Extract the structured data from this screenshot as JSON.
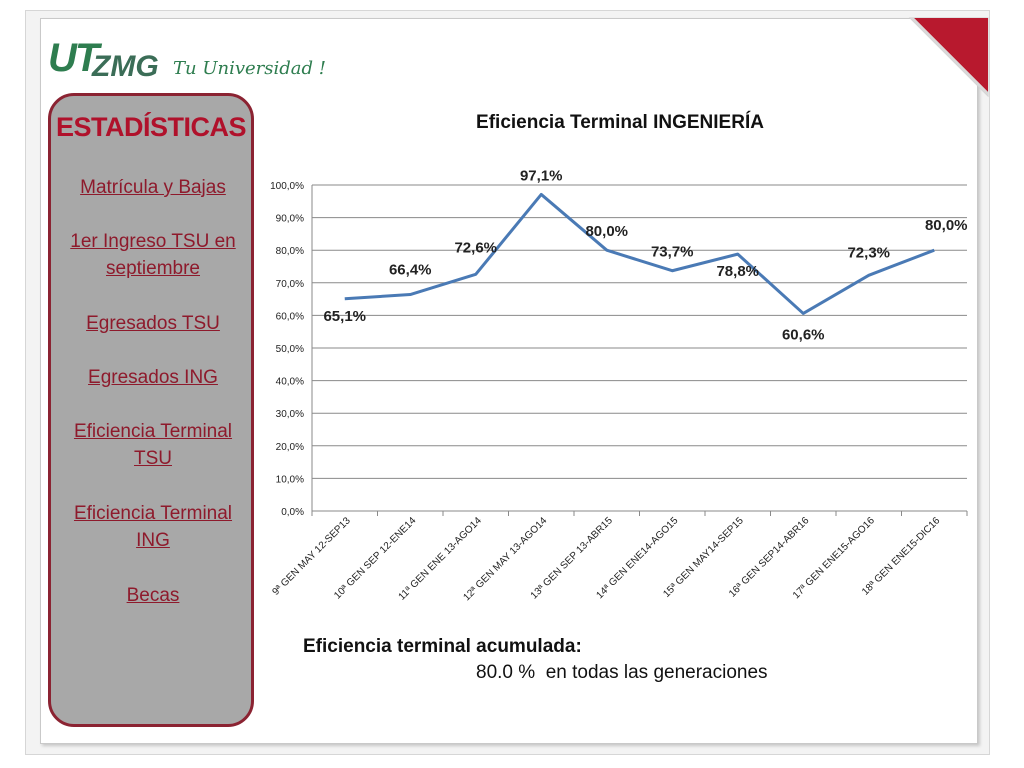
{
  "brand": {
    "name_part1": "UT",
    "name_part2": "ZMG",
    "tagline": "Tu Universidad !",
    "color": "#2e7d4f"
  },
  "sidebar": {
    "title": "ESTADÍSTICAS",
    "items": [
      {
        "label": "Matrícula y Bajas"
      },
      {
        "label": "1er Ingreso TSU en septiembre"
      },
      {
        "label": "Egresados TSU"
      },
      {
        "label": "Egresados ING"
      },
      {
        "label": "Eficiencia Terminal TSU"
      },
      {
        "label": "Eficiencia Terminal ING"
      },
      {
        "label": "Becas"
      }
    ]
  },
  "summary": {
    "label": "Eficiencia terminal acumulada:",
    "value": "80.0 %  en todas las generaciones"
  },
  "chart_data": {
    "type": "line",
    "title": "Eficiencia Terminal INGENIERÍA",
    "xlabel": "",
    "ylabel": "",
    "ylim": [
      0,
      100
    ],
    "yticks": [
      "0,0%",
      "10,0%",
      "20,0%",
      "30,0%",
      "40,0%",
      "50,0%",
      "60,0%",
      "70,0%",
      "80,0%",
      "90,0%",
      "100,0%"
    ],
    "grid": true,
    "legend": "none",
    "line_color": "#4a7ab5",
    "categories": [
      "9ª GEN MAY 12-SEP13",
      "10ª GEN SEP 12-ENE14",
      "11ª GEN ENE 13-AGO14",
      "12ª GEN MAY 13-AGO14",
      "13ª GEN SEP 13-ABR15",
      "14ª GEN ENE14-AGO15",
      "15ª GEN MAY14-SEP15",
      "16ª GEN SEP14-ABR16",
      "17ª GEN ENE15-AGO16",
      "18ª GEN ENE15-DIC16"
    ],
    "values": [
      65.1,
      66.4,
      72.6,
      97.1,
      80.0,
      73.7,
      78.8,
      60.6,
      72.3,
      80.0
    ],
    "data_labels": [
      "65,1%",
      "66,4%",
      "72,6%",
      "97,1%",
      "80,0%",
      "73,7%",
      "78,8%",
      "60,6%",
      "72,3%",
      "80,0%"
    ]
  }
}
